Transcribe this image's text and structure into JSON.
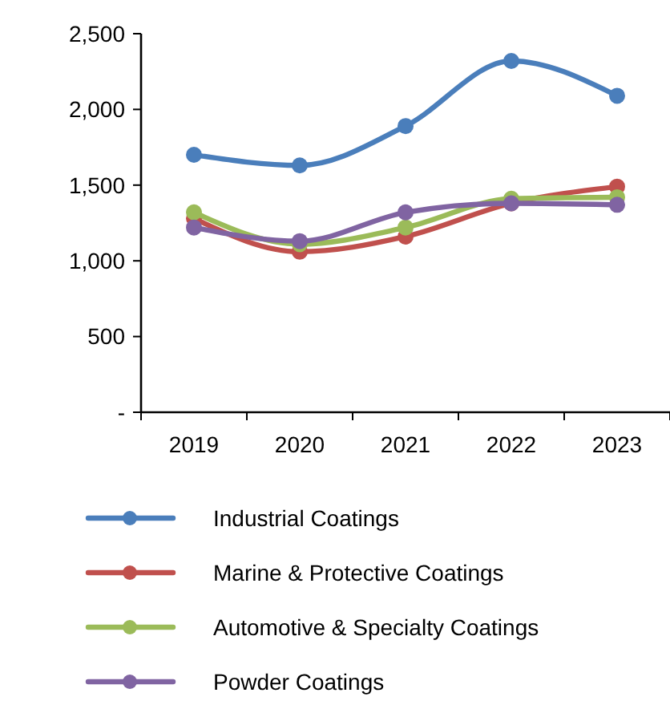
{
  "chart_data": {
    "type": "line",
    "categories": [
      "2019",
      "2020",
      "2021",
      "2022",
      "2023"
    ],
    "series": [
      {
        "name": "Industrial Coatings",
        "color": "#4a7ebb",
        "values": [
          1700,
          1630,
          1890,
          2320,
          2090
        ]
      },
      {
        "name": "Marine & Protective Coatings",
        "color": "#c0504d",
        "values": [
          1280,
          1060,
          1160,
          1380,
          1490
        ]
      },
      {
        "name": "Automotive & Specialty Coatings",
        "color": "#9bbb59",
        "values": [
          1320,
          1110,
          1220,
          1410,
          1420
        ]
      },
      {
        "name": "Powder Coatings",
        "color": "#8064a2",
        "values": [
          1220,
          1130,
          1320,
          1380,
          1370
        ]
      }
    ],
    "ylim": [
      0,
      2500
    ],
    "yticks": [
      {
        "value": 0,
        "label": "-"
      },
      500,
      {
        "value": 1000,
        "label": "1,000"
      },
      {
        "value": 1500,
        "label": "1,500"
      },
      {
        "value": 2000,
        "label": "2,000"
      },
      {
        "value": 2500,
        "label": "2,500"
      }
    ],
    "grid": false,
    "legend": "bottom",
    "marker": "circle",
    "line_style": "solid"
  }
}
